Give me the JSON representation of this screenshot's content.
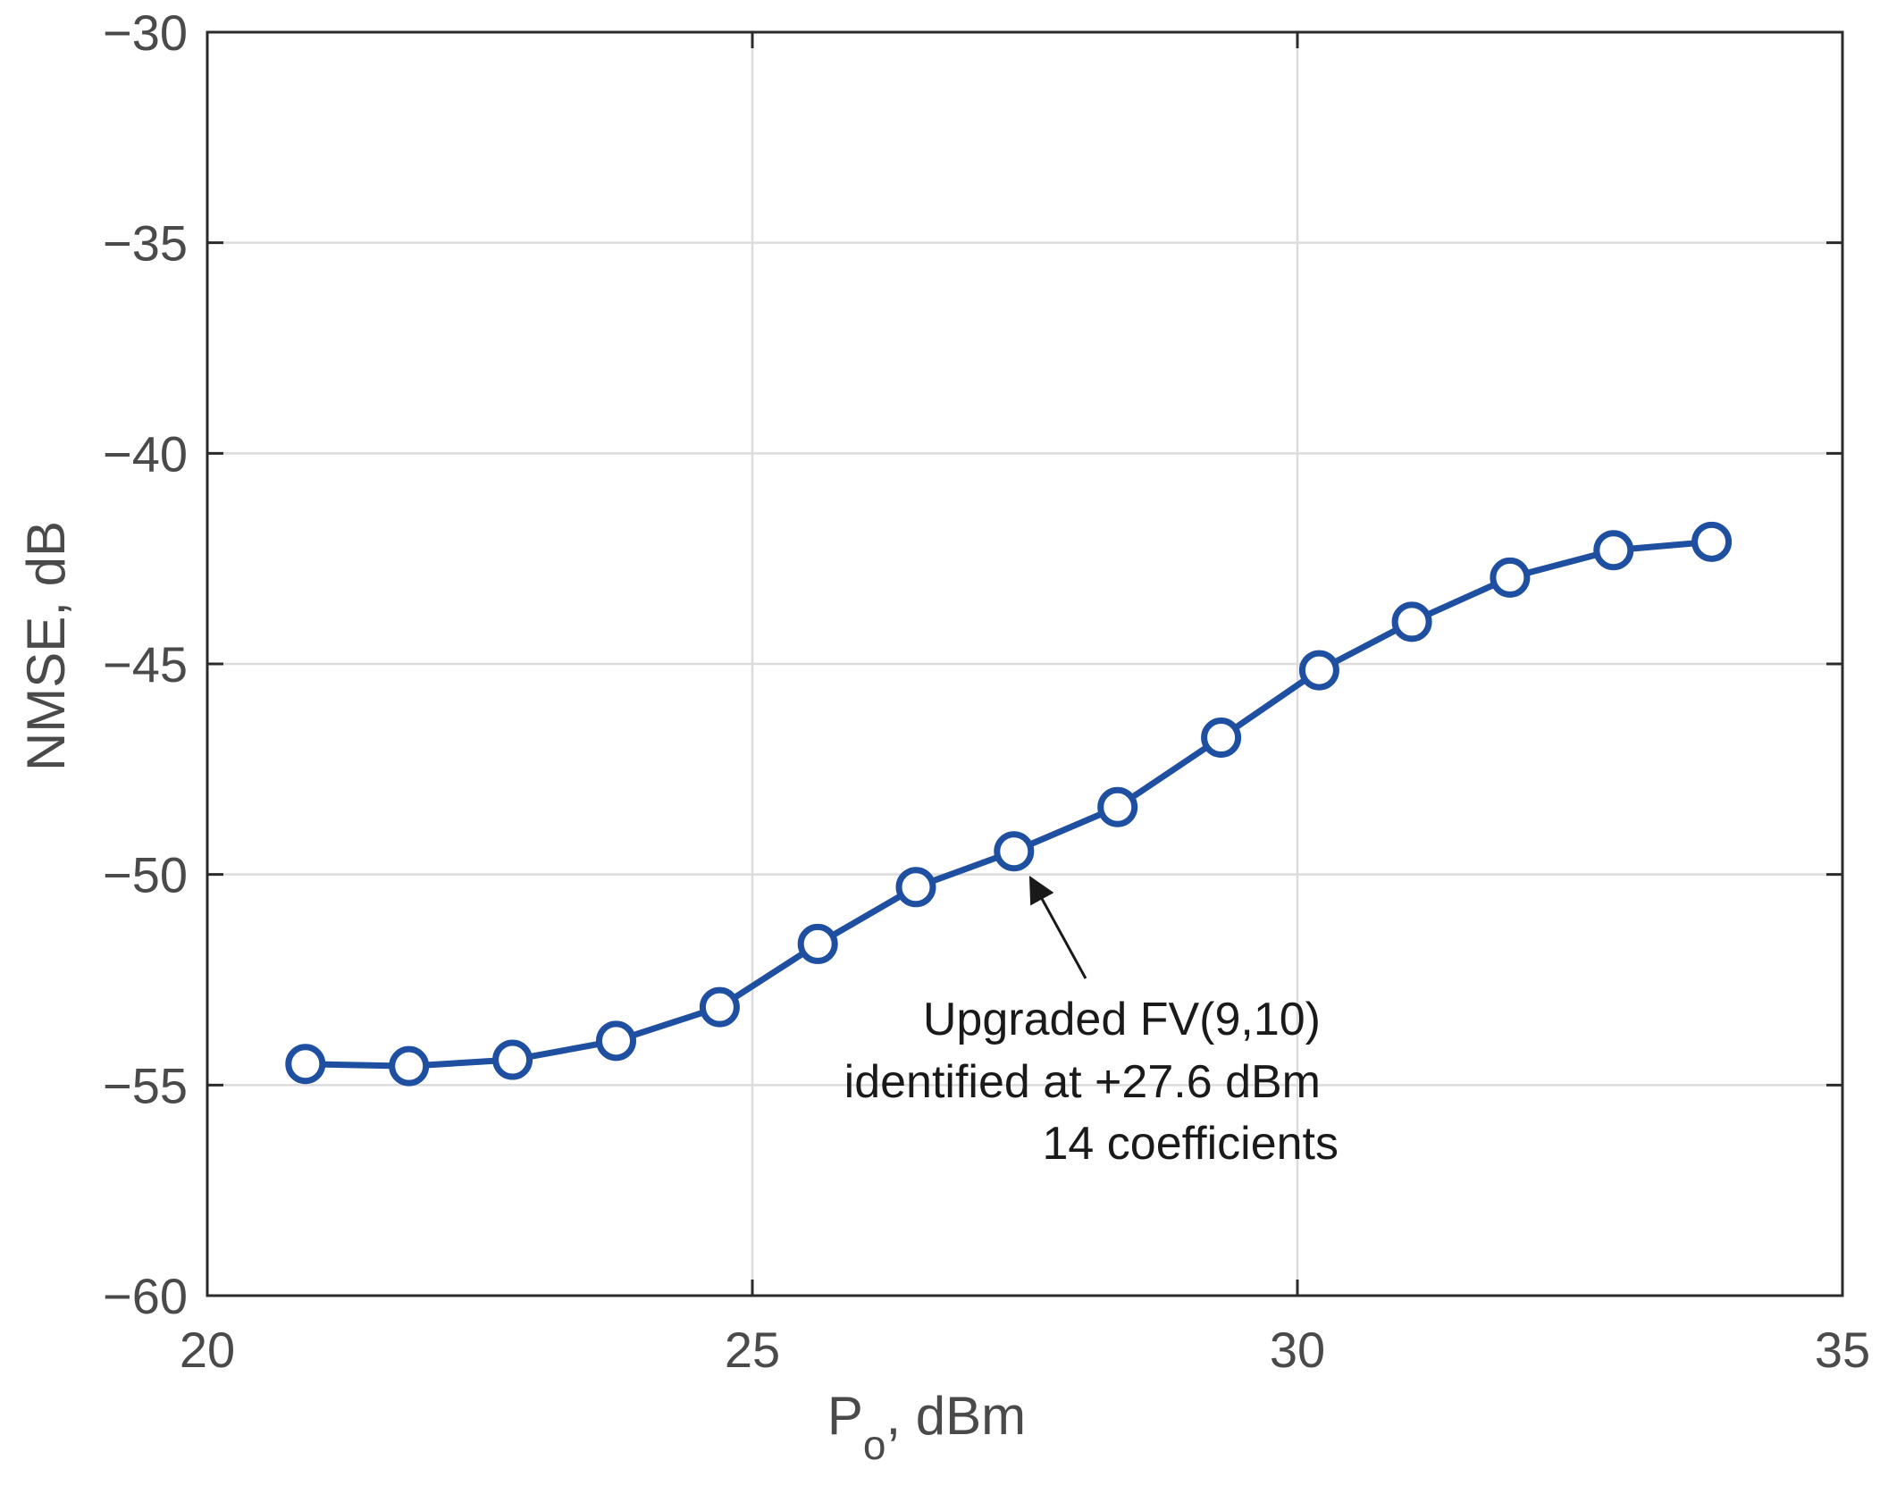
{
  "chart_data": {
    "type": "line",
    "title": "",
    "xlabel_main": "P",
    "xlabel_sub": "o",
    "xlabel_rest": ", dBm",
    "ylabel": "NMSE, dB",
    "xlim": [
      20,
      35
    ],
    "ylim": [
      -60,
      -30
    ],
    "xticks": [
      20,
      25,
      30,
      35
    ],
    "yticks": [
      -30,
      -35,
      -40,
      -45,
      -50,
      -55,
      -60
    ],
    "xtick_labels": [
      "20",
      "25",
      "30",
      "35"
    ],
    "ytick_labels": [
      "−30",
      "−35",
      "−40",
      "−45",
      "−50",
      "−55",
      "−60"
    ],
    "grid": true,
    "series": [
      {
        "name": "NMSE",
        "color": "#1f4fa0",
        "marker": "circle",
        "x": [
          20.9,
          21.85,
          22.8,
          23.75,
          24.7,
          25.6,
          26.5,
          27.4,
          28.35,
          29.3,
          30.2,
          31.05,
          31.95,
          32.9,
          33.8
        ],
        "y": [
          -54.5,
          -54.55,
          -54.4,
          -53.95,
          -53.15,
          -51.65,
          -50.3,
          -49.45,
          -48.4,
          -46.75,
          -45.15,
          -44.0,
          -42.95,
          -42.3,
          -42.1
        ]
      }
    ],
    "annotation": {
      "lines": [
        "Upgraded FV(9,10)",
        "identified at +27.6 dBm",
        "14 coefficients"
      ],
      "arrow_target": [
        27.4,
        -49.8
      ],
      "arrow_color": "#1a1a1a"
    }
  }
}
